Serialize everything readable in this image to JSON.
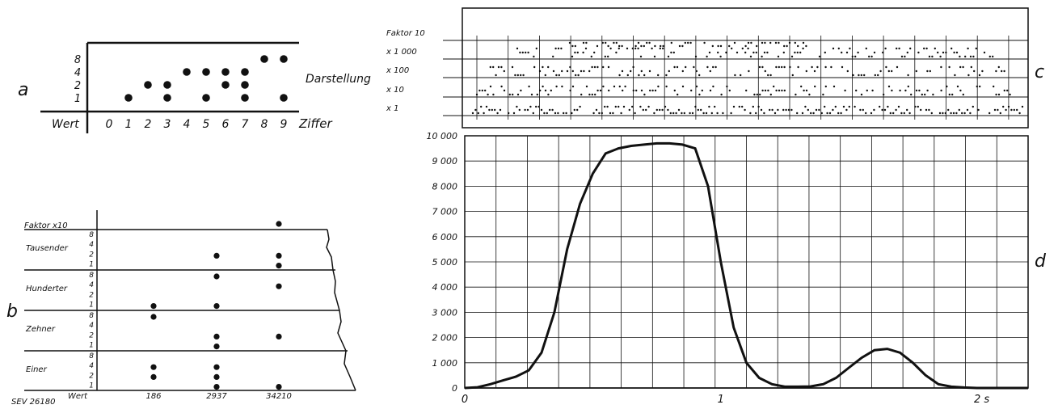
{
  "panel_a": {
    "label": "a",
    "weights": [
      "8",
      "4",
      "2",
      "1"
    ],
    "row_header": "Wert",
    "digits": [
      "0",
      "1",
      "2",
      "3",
      "4",
      "5",
      "6",
      "7",
      "8",
      "9"
    ],
    "digit_caption": "Ziffer",
    "representation_caption": "Darstellung",
    "encoding": [
      [],
      [
        1
      ],
      [
        2
      ],
      [
        2,
        1
      ],
      [
        4
      ],
      [
        4,
        1
      ],
      [
        4,
        2
      ],
      [
        4,
        2,
        1
      ],
      [
        8
      ],
      [
        8,
        1
      ]
    ]
  },
  "panel_b": {
    "label": "b",
    "factor_label": "Faktor x10",
    "groups": [
      {
        "name": "Tausender",
        "weights": [
          "8",
          "4",
          "2",
          "1"
        ]
      },
      {
        "name": "Hunderter",
        "weights": [
          "8",
          "4",
          "2",
          "1"
        ]
      },
      {
        "name": "Zehner",
        "weights": [
          "8",
          "4",
          "2",
          "1"
        ]
      },
      {
        "name": "Einer",
        "weights": [
          "8",
          "4",
          "2",
          "1"
        ]
      }
    ],
    "row_header": "Wert",
    "values": [
      "186",
      "2937",
      "34210"
    ],
    "columns": [
      {
        "factor": false,
        "digits": [
          0,
          1,
          8,
          6
        ]
      },
      {
        "factor": false,
        "digits": [
          2,
          9,
          3,
          7
        ]
      },
      {
        "factor": true,
        "digits": [
          3,
          4,
          2,
          1
        ]
      }
    ],
    "figure_id": "SEV 26180"
  },
  "panel_c": {
    "label": "c",
    "row_labels": [
      "Faktor 10",
      "x 1 000",
      "x  100",
      "x   10",
      "x    1"
    ]
  },
  "panel_d": {
    "label": "d",
    "y_ticks": [
      "10 000",
      "9 000",
      "8 000",
      "7 000",
      "6 000",
      "5 000",
      "4 000",
      "3 000",
      "2 000",
      "1 000",
      "0"
    ],
    "x_ticks": [
      "0",
      "1",
      "2 s"
    ]
  },
  "chart_data": {
    "type": "line",
    "title": "",
    "xlabel": "s",
    "ylabel": "",
    "xlim": [
      0,
      2.2
    ],
    "ylim": [
      0,
      10000
    ],
    "grid": true,
    "series": [
      {
        "x": [
          0,
          0.05,
          0.1,
          0.15,
          0.2,
          0.25,
          0.3,
          0.35,
          0.4,
          0.45,
          0.5,
          0.55,
          0.6,
          0.65,
          0.7,
          0.75,
          0.8,
          0.85,
          0.9,
          0.95,
          1.0,
          1.05,
          1.1,
          1.15,
          1.2,
          1.25,
          1.3,
          1.35,
          1.4,
          1.45,
          1.5,
          1.55,
          1.6,
          1.65,
          1.7,
          1.75,
          1.8,
          1.85,
          1.9,
          1.95,
          2.0,
          2.05,
          2.1,
          2.15,
          2.2
        ],
        "y": [
          0,
          30,
          150,
          300,
          450,
          700,
          1400,
          3000,
          5500,
          7300,
          8500,
          9300,
          9500,
          9600,
          9650,
          9700,
          9700,
          9650,
          9500,
          8000,
          5000,
          2400,
          1000,
          400,
          150,
          50,
          50,
          60,
          150,
          400,
          800,
          1200,
          1500,
          1550,
          1400,
          1000,
          500,
          150,
          50,
          20,
          0,
          0,
          0,
          0,
          0
        ]
      }
    ]
  }
}
